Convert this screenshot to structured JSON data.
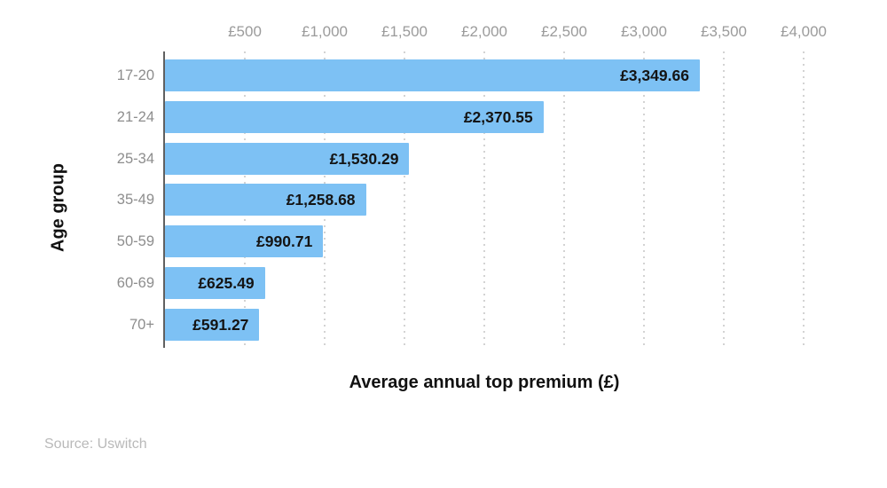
{
  "chart_data": {
    "type": "bar",
    "orientation": "horizontal",
    "title": "",
    "xlabel": "Average annual top premium (£)",
    "ylabel": "Age group",
    "categories": [
      "17-20",
      "21-24",
      "25-34",
      "35-49",
      "50-59",
      "60-69",
      "70+"
    ],
    "values": [
      3349.66,
      2370.55,
      1530.29,
      1258.68,
      990.71,
      625.49,
      591.27
    ],
    "value_labels": [
      "£3,349.66",
      "£2,370.55",
      "£1,530.29",
      "£1,258.68",
      "£990.71",
      "£625.49",
      "£591.27"
    ],
    "xlim": [
      0,
      4000
    ],
    "x_ticks": [
      500,
      1000,
      1500,
      2000,
      2500,
      3000,
      3500,
      4000
    ],
    "x_tick_labels": [
      "£500",
      "£1,000",
      "£1,500",
      "£2,000",
      "£2,500",
      "£3,000",
      "£3,500",
      "£4,000"
    ],
    "grid": "vertical-dotted",
    "legend": "none",
    "colors": {
      "bar": "#7dc1f4",
      "axis_line": "#606060",
      "gridline": "#d3d3d3",
      "tick_label": "#9b9b9b",
      "category_label": "#8d8d8d",
      "value_label": "#141414",
      "title_text": "#111111",
      "source_text": "#b9b9b9",
      "background": "#ffffff"
    }
  },
  "source": {
    "label": "Source: Uswitch"
  }
}
